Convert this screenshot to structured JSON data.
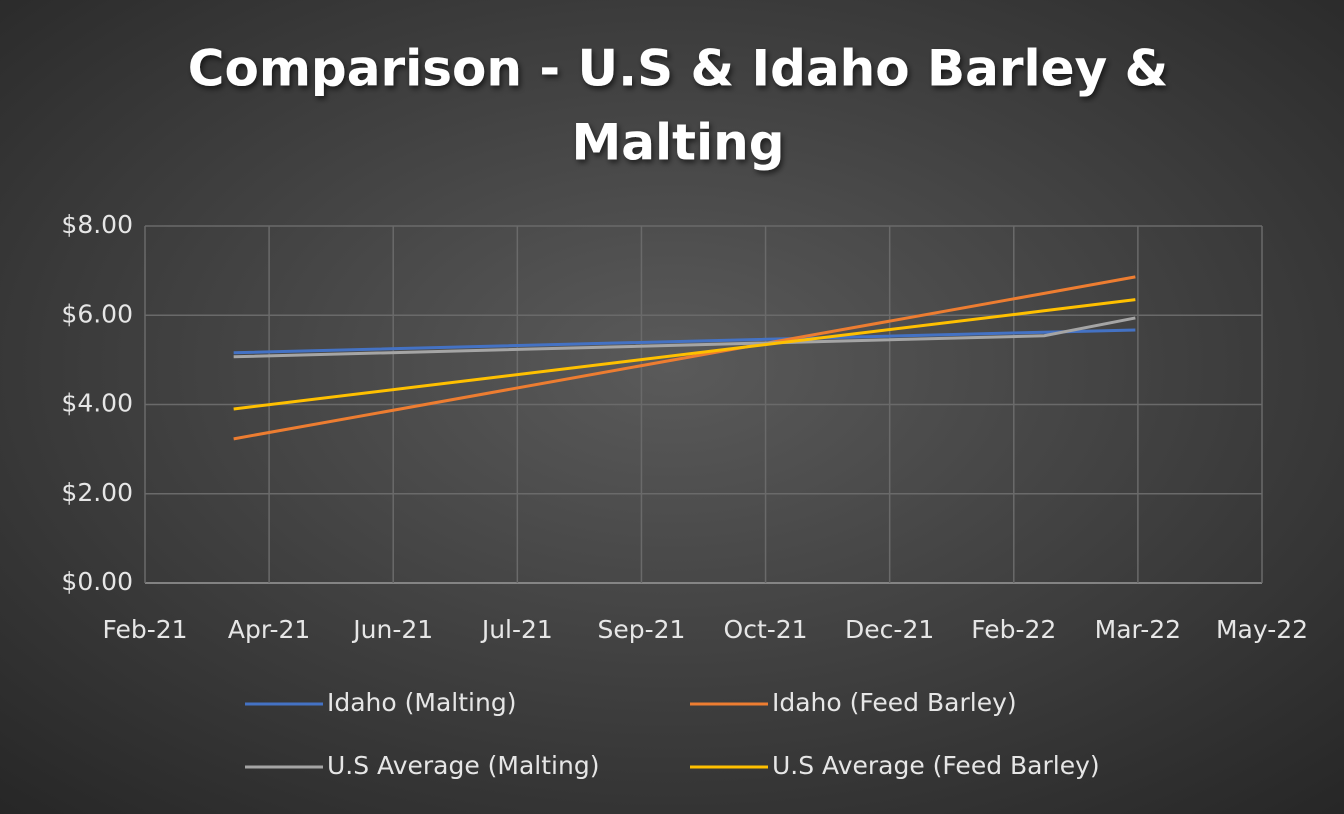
{
  "chart_data": {
    "type": "line",
    "title": [
      "Comparison - U.S & Idaho Barley &",
      "Malting"
    ],
    "x": [
      "2021-04-01",
      "2022-02-15",
      "2022-03-23"
    ],
    "series": [
      {
        "name": "Idaho (Malting)",
        "color": "#4472c4",
        "values": [
          5.16,
          5.62,
          5.67
        ]
      },
      {
        "name": "Idaho (Feed Barley)",
        "color": "#ed7d31",
        "values": [
          3.23,
          6.49,
          6.86
        ]
      },
      {
        "name": "U.S Average (Malting)",
        "color": "#a5a5a5",
        "values": [
          5.07,
          5.54,
          5.94
        ]
      },
      {
        "name": "U.S Average (Feed Barley)",
        "color": "#ffc000",
        "values": [
          3.9,
          6.1,
          6.35
        ]
      }
    ],
    "xlim": [
      "2021-02-25",
      "2022-05-12"
    ],
    "xticks": [
      {
        "value": "2021-02-25",
        "label": "Feb-21"
      },
      {
        "value": "2021-04-15",
        "label": "Apr-21"
      },
      {
        "value": "2021-06-03",
        "label": "Jun-21"
      },
      {
        "value": "2021-07-22",
        "label": "Jul-21"
      },
      {
        "value": "2021-09-09",
        "label": "Sep-21"
      },
      {
        "value": "2021-10-28",
        "label": "Oct-21"
      },
      {
        "value": "2021-12-16",
        "label": "Dec-21"
      },
      {
        "value": "2022-02-03",
        "label": "Feb-22"
      },
      {
        "value": "2022-03-24",
        "label": "Mar-22"
      },
      {
        "value": "2022-05-12",
        "label": "May-22"
      }
    ],
    "ylim": [
      0,
      8
    ],
    "yticks": [
      {
        "value": 0,
        "label": "$0.00"
      },
      {
        "value": 2,
        "label": "$2.00"
      },
      {
        "value": 4,
        "label": "$4.00"
      },
      {
        "value": 6,
        "label": "$6.00"
      },
      {
        "value": 8,
        "label": "$8.00"
      }
    ],
    "grid": true,
    "legend": "bottom"
  }
}
